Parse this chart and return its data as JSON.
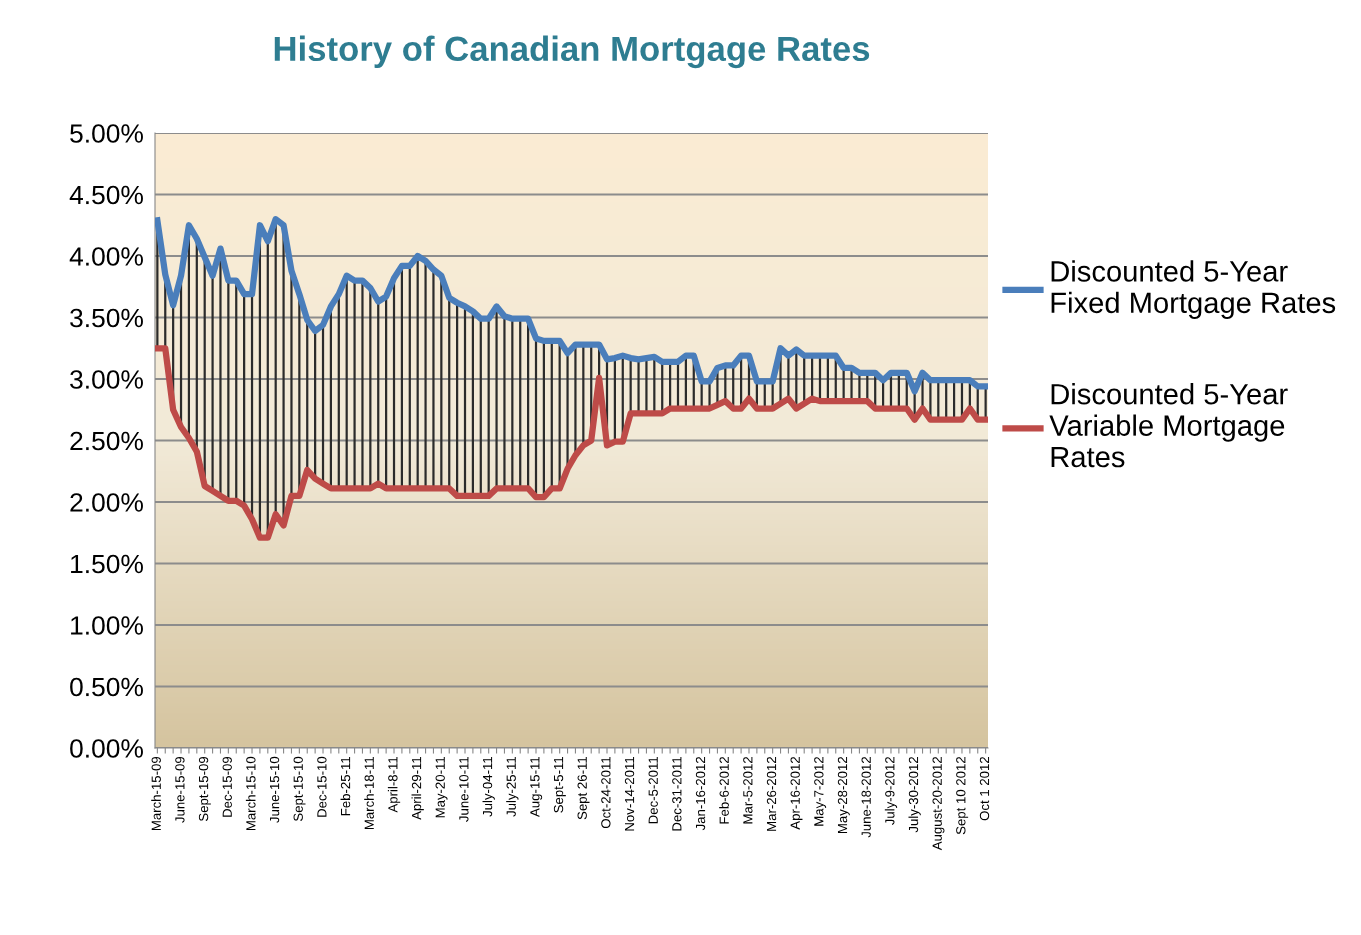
{
  "chart_data": {
    "type": "line",
    "title": "History of Canadian Mortgage Rates",
    "categories": [
      "March-15-09",
      null,
      null,
      "June-15-09",
      null,
      null,
      "Sept-15-09",
      null,
      null,
      "Dec-15-09",
      null,
      null,
      "March-15-10",
      null,
      null,
      "June-15-10",
      null,
      null,
      "Sept-15-10",
      null,
      null,
      "Dec-15-10",
      null,
      null,
      "Feb-25-11",
      null,
      null,
      "March-18-11",
      null,
      null,
      "April-8-11",
      null,
      null,
      "April-29-11",
      null,
      null,
      "May-20-11",
      null,
      null,
      "June-10-11",
      null,
      null,
      "July-04-11",
      null,
      null,
      "July-25-11",
      null,
      null,
      "Aug-15-11",
      null,
      null,
      "Sept-5-11",
      null,
      null,
      "Sept 26-11",
      null,
      null,
      "Oct-24-2011",
      null,
      null,
      "Nov-14-2011",
      null,
      null,
      "Dec-5-2011",
      null,
      null,
      "Dec-31-2011",
      null,
      null,
      "Jan-16-2012",
      null,
      null,
      "Feb-6-2012",
      null,
      null,
      "Mar-5-2012",
      null,
      null,
      "Mar-26-2012",
      null,
      null,
      "Apr-16-2012",
      null,
      null,
      "May-7-2012",
      null,
      null,
      "May-28-2012",
      null,
      null,
      "June-18-2012",
      null,
      null,
      "July-9-2012",
      null,
      null,
      "July-30-2012",
      null,
      null,
      "August-20-2012",
      null,
      null,
      "Sept 10 2012",
      null,
      null,
      "Oct 1 2012"
    ],
    "series": [
      {
        "name": "Discounted 5-Year\nFixed Mortgage Rates",
        "color": "#4a7ebb",
        "values": [
          4.29,
          3.85,
          3.6,
          3.84,
          4.25,
          4.14,
          3.99,
          3.84,
          4.06,
          3.8,
          3.8,
          3.69,
          3.69,
          4.25,
          4.12,
          4.3,
          4.25,
          3.88,
          3.69,
          3.48,
          3.39,
          3.44,
          3.59,
          3.69,
          3.84,
          3.8,
          3.8,
          3.74,
          3.63,
          3.67,
          3.82,
          3.92,
          3.92,
          4.0,
          3.96,
          3.89,
          3.84,
          3.66,
          3.62,
          3.59,
          3.55,
          3.49,
          3.49,
          3.59,
          3.51,
          3.49,
          3.49,
          3.49,
          3.33,
          3.31,
          3.31,
          3.31,
          3.21,
          3.28,
          3.28,
          3.28,
          3.28,
          3.16,
          3.17,
          3.19,
          3.17,
          3.16,
          3.17,
          3.18,
          3.14,
          3.14,
          3.14,
          3.19,
          3.19,
          2.98,
          2.98,
          3.09,
          3.11,
          3.11,
          3.19,
          3.19,
          2.98,
          2.98,
          2.98,
          3.25,
          3.19,
          3.24,
          3.19,
          3.19,
          3.19,
          3.19,
          3.19,
          3.09,
          3.09,
          3.05,
          3.05,
          3.05,
          2.99,
          3.05,
          3.05,
          3.05,
          2.9,
          3.05,
          2.99,
          2.99,
          2.99,
          2.99,
          2.99,
          2.99,
          2.94,
          2.94
        ]
      },
      {
        "name": "Discounted 5-Year\nVariable Mortgage\nRates",
        "color": "#be4b48",
        "values": [
          3.25,
          3.25,
          2.75,
          2.61,
          2.52,
          2.41,
          2.13,
          2.09,
          2.05,
          2.01,
          2.01,
          1.97,
          1.86,
          1.71,
          1.71,
          1.9,
          1.81,
          2.05,
          2.05,
          2.26,
          2.19,
          2.15,
          2.11,
          2.11,
          2.11,
          2.11,
          2.11,
          2.11,
          2.15,
          2.11,
          2.11,
          2.11,
          2.11,
          2.11,
          2.11,
          2.11,
          2.11,
          2.11,
          2.05,
          2.05,
          2.05,
          2.05,
          2.05,
          2.11,
          2.11,
          2.11,
          2.11,
          2.11,
          2.04,
          2.04,
          2.11,
          2.11,
          2.27,
          2.38,
          2.46,
          2.5,
          3.01,
          2.46,
          2.49,
          2.49,
          2.72,
          2.72,
          2.72,
          2.72,
          2.72,
          2.76,
          2.76,
          2.76,
          2.76,
          2.76,
          2.76,
          2.79,
          2.82,
          2.76,
          2.76,
          2.84,
          2.76,
          2.76,
          2.76,
          2.8,
          2.84,
          2.76,
          2.8,
          2.84,
          2.82,
          2.82,
          2.82,
          2.82,
          2.82,
          2.82,
          2.82,
          2.76,
          2.76,
          2.76,
          2.76,
          2.76,
          2.67,
          2.76,
          2.67,
          2.67,
          2.67,
          2.67,
          2.67,
          2.76,
          2.67,
          2.67
        ]
      }
    ],
    "ylim": [
      0,
      5
    ],
    "yticks": [
      {
        "value": 0,
        "label": "0.00%"
      },
      {
        "value": 0.5,
        "label": "0.50%"
      },
      {
        "value": 1,
        "label": "1.00%"
      },
      {
        "value": 1.5,
        "label": "1.50%"
      },
      {
        "value": 2,
        "label": "2.00%"
      },
      {
        "value": 2.5,
        "label": "2.50%"
      },
      {
        "value": 3,
        "label": "3.00%"
      },
      {
        "value": 3.5,
        "label": "3.50%"
      },
      {
        "value": 4,
        "label": "4.00%"
      },
      {
        "value": 4.5,
        "label": "4.50%"
      },
      {
        "value": 5,
        "label": "5.00%"
      }
    ],
    "grid": "y",
    "legend": "right",
    "marker": "none",
    "line_style": "solid"
  }
}
